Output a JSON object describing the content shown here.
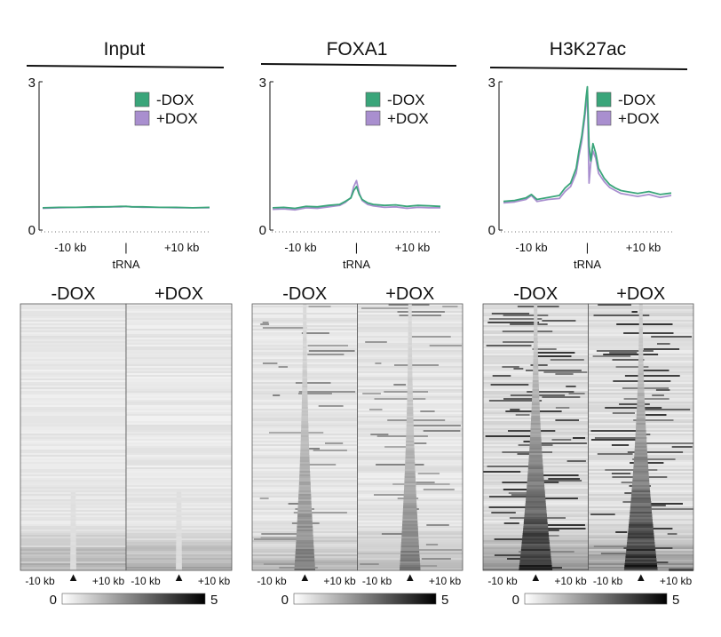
{
  "colors": {
    "minus_dox": "#3aa57a",
    "plus_dox": "#a98fcf",
    "heatmap_low": "#ffffff",
    "heatmap_high": "#000000",
    "axis": "#111111"
  },
  "chart_data": [
    {
      "type": "line",
      "title": "Input",
      "ylim": [
        0,
        3
      ],
      "yticks": [
        "0",
        "3"
      ],
      "xlim": [
        -15,
        15
      ],
      "xticks": [
        {
          "x": -10,
          "label": "-10 kb"
        },
        {
          "x": 0,
          "label": "|"
        },
        {
          "x": 10,
          "label": "+10 kb"
        }
      ],
      "xlabel": "tRNA",
      "legend": "top-right",
      "series": [
        {
          "name": "-DOX",
          "color": "#3aa57a",
          "x": [
            -15,
            -12,
            -9,
            -6,
            -3,
            -1,
            0,
            1,
            3,
            6,
            9,
            12,
            15
          ],
          "y": [
            0.45,
            0.46,
            0.46,
            0.47,
            0.47,
            0.48,
            0.48,
            0.47,
            0.47,
            0.46,
            0.46,
            0.45,
            0.46
          ]
        },
        {
          "name": "+DOX",
          "color": "#a98fcf",
          "x": [
            -15,
            -12,
            -9,
            -6,
            -3,
            -1,
            0,
            1,
            3,
            6,
            9,
            12,
            15
          ],
          "y": [
            0.44,
            0.45,
            0.46,
            0.46,
            0.47,
            0.47,
            0.48,
            0.47,
            0.46,
            0.46,
            0.45,
            0.45,
            0.45
          ]
        }
      ]
    },
    {
      "type": "line",
      "title": "FOXA1",
      "ylim": [
        0,
        3
      ],
      "yticks": [
        "0",
        "3"
      ],
      "xlim": [
        -15,
        15
      ],
      "xticks": [
        {
          "x": -10,
          "label": "-10 kb"
        },
        {
          "x": 0,
          "label": "|"
        },
        {
          "x": 10,
          "label": "+10 kb"
        }
      ],
      "xlabel": "tRNA",
      "legend": "top-right",
      "series": [
        {
          "name": "-DOX",
          "color": "#3aa57a",
          "x": [
            -15,
            -13,
            -11,
            -9,
            -7,
            -5,
            -3,
            -2,
            -1,
            -0.5,
            0,
            0.5,
            1,
            2,
            3,
            5,
            7,
            9,
            11,
            13,
            15
          ],
          "y": [
            0.45,
            0.46,
            0.44,
            0.48,
            0.47,
            0.5,
            0.52,
            0.58,
            0.65,
            0.8,
            0.88,
            0.72,
            0.62,
            0.55,
            0.52,
            0.5,
            0.51,
            0.48,
            0.5,
            0.49,
            0.48
          ]
        },
        {
          "name": "+DOX",
          "color": "#a98fcf",
          "x": [
            -15,
            -13,
            -11,
            -9,
            -7,
            -5,
            -3,
            -2,
            -1,
            -0.5,
            0,
            0.5,
            1,
            2,
            3,
            5,
            7,
            9,
            11,
            13,
            15
          ],
          "y": [
            0.42,
            0.43,
            0.41,
            0.45,
            0.44,
            0.47,
            0.5,
            0.56,
            0.66,
            0.88,
            1.0,
            0.75,
            0.6,
            0.52,
            0.49,
            0.46,
            0.47,
            0.44,
            0.46,
            0.45,
            0.45
          ]
        }
      ]
    },
    {
      "type": "line",
      "title": "H3K27ac",
      "ylim": [
        0,
        3
      ],
      "yticks": [
        "0",
        "3"
      ],
      "xlim": [
        -15,
        15
      ],
      "xticks": [
        {
          "x": -10,
          "label": "-10 kb"
        },
        {
          "x": 0,
          "label": "|"
        },
        {
          "x": 10,
          "label": "+10 kb"
        }
      ],
      "xlabel": "tRNA",
      "legend": "top-right",
      "series": [
        {
          "name": "-DOX",
          "color": "#3aa57a",
          "x": [
            -15,
            -13,
            -11,
            -10,
            -9,
            -7,
            -5,
            -4,
            -3,
            -2,
            -1.5,
            -1,
            -0.5,
            -0.2,
            0,
            0.3,
            0.6,
            1,
            1.5,
            2,
            3,
            4,
            5,
            6,
            7,
            9,
            11,
            13,
            15
          ],
          "y": [
            0.58,
            0.6,
            0.65,
            0.72,
            0.62,
            0.66,
            0.7,
            0.85,
            0.95,
            1.25,
            1.6,
            1.9,
            2.35,
            2.7,
            2.9,
            1.7,
            1.4,
            1.75,
            1.55,
            1.25,
            1.05,
            0.92,
            0.85,
            0.8,
            0.78,
            0.74,
            0.78,
            0.72,
            0.75
          ]
        },
        {
          "name": "+DOX",
          "color": "#a98fcf",
          "x": [
            -15,
            -13,
            -11,
            -10,
            -9,
            -7,
            -5,
            -4,
            -3,
            -2,
            -1.5,
            -1,
            -0.5,
            -0.2,
            0,
            0.3,
            0.6,
            1,
            1.5,
            2,
            3,
            4,
            5,
            6,
            7,
            9,
            11,
            13,
            15
          ],
          "y": [
            0.55,
            0.57,
            0.62,
            0.7,
            0.58,
            0.62,
            0.64,
            0.78,
            0.88,
            1.15,
            1.5,
            1.8,
            2.25,
            2.55,
            2.75,
            0.95,
            1.35,
            1.6,
            1.45,
            1.15,
            0.98,
            0.86,
            0.8,
            0.74,
            0.72,
            0.68,
            0.72,
            0.66,
            0.7
          ]
        }
      ]
    },
    {
      "type": "heatmap",
      "title": "Input",
      "panels": [
        "-DOX",
        "+DOX"
      ],
      "xlabels": [
        "-10 kb",
        "+10 kb"
      ],
      "center_marker": "▲",
      "center_signal": 0.08,
      "background": 0.12,
      "sparse": 0.0,
      "bottom_band": 0.45,
      "colorbar": {
        "min": "0",
        "max": "5"
      }
    },
    {
      "type": "heatmap",
      "title": "FOXA1",
      "panels": [
        "-DOX",
        "+DOX"
      ],
      "xlabels": [
        "-10 kb",
        "+10 kb"
      ],
      "center_marker": "▲",
      "center_signal": 0.55,
      "background": 0.14,
      "sparse": 0.35,
      "bottom_band": 0.35,
      "colorbar": {
        "min": "0",
        "max": "5"
      }
    },
    {
      "type": "heatmap",
      "title": "H3K27ac",
      "panels": [
        "-DOX",
        "+DOX"
      ],
      "xlabels": [
        "-10 kb",
        "+10 kb"
      ],
      "center_marker": "▲",
      "center_signal": 0.95,
      "background": 0.18,
      "sparse": 0.75,
      "bottom_band": 0.55,
      "colorbar": {
        "min": "0",
        "max": "5"
      }
    }
  ]
}
